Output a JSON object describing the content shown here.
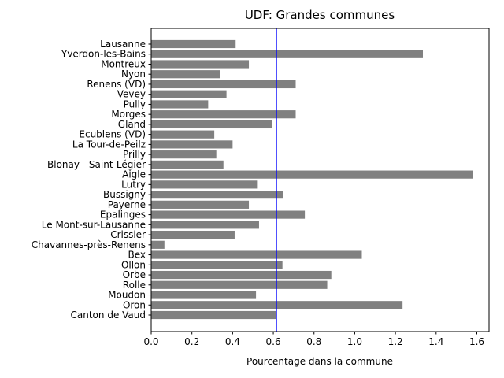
{
  "chart_data": {
    "type": "bar",
    "orientation": "horizontal",
    "title": "UDF: Grandes communes",
    "xlabel": "Pourcentage dans la commune",
    "ylabel": "",
    "xlim": [
      0,
      1.66
    ],
    "xticks": [
      0.0,
      0.2,
      0.4,
      0.6,
      0.8,
      1.0,
      1.2,
      1.4,
      1.6
    ],
    "xtick_labels": [
      "0.0",
      "0.2",
      "0.4",
      "0.6",
      "0.8",
      "1.0",
      "1.2",
      "1.4",
      "1.6"
    ],
    "bar_color": "#808080",
    "reference_line": {
      "value": 0.615,
      "color": "#0000ff"
    },
    "grid": false,
    "categories": [
      "Lausanne",
      "Yverdon-les-Bains",
      "Montreux",
      "Nyon",
      "Renens (VD)",
      "Vevey",
      "Pully",
      "Morges",
      "Gland",
      "Ecublens (VD)",
      "La Tour-de-Peilz",
      "Prilly",
      "Blonay - Saint-Légier",
      "Aigle",
      "Lutry",
      "Bussigny",
      "Payerne",
      "Epalinges",
      "Le Mont-sur-Lausanne",
      "Crissier",
      "Chavannes-près-Renens",
      "Bex",
      "Ollon",
      "Orbe",
      "Rolle",
      "Moudon",
      "Oron",
      "Canton de Vaud"
    ],
    "values": [
      0.415,
      1.335,
      0.48,
      0.34,
      0.71,
      0.37,
      0.28,
      0.71,
      0.595,
      0.31,
      0.4,
      0.32,
      0.355,
      1.58,
      0.52,
      0.65,
      0.48,
      0.755,
      0.53,
      0.41,
      0.065,
      1.035,
      0.645,
      0.885,
      0.865,
      0.515,
      1.235,
      0.615
    ]
  }
}
